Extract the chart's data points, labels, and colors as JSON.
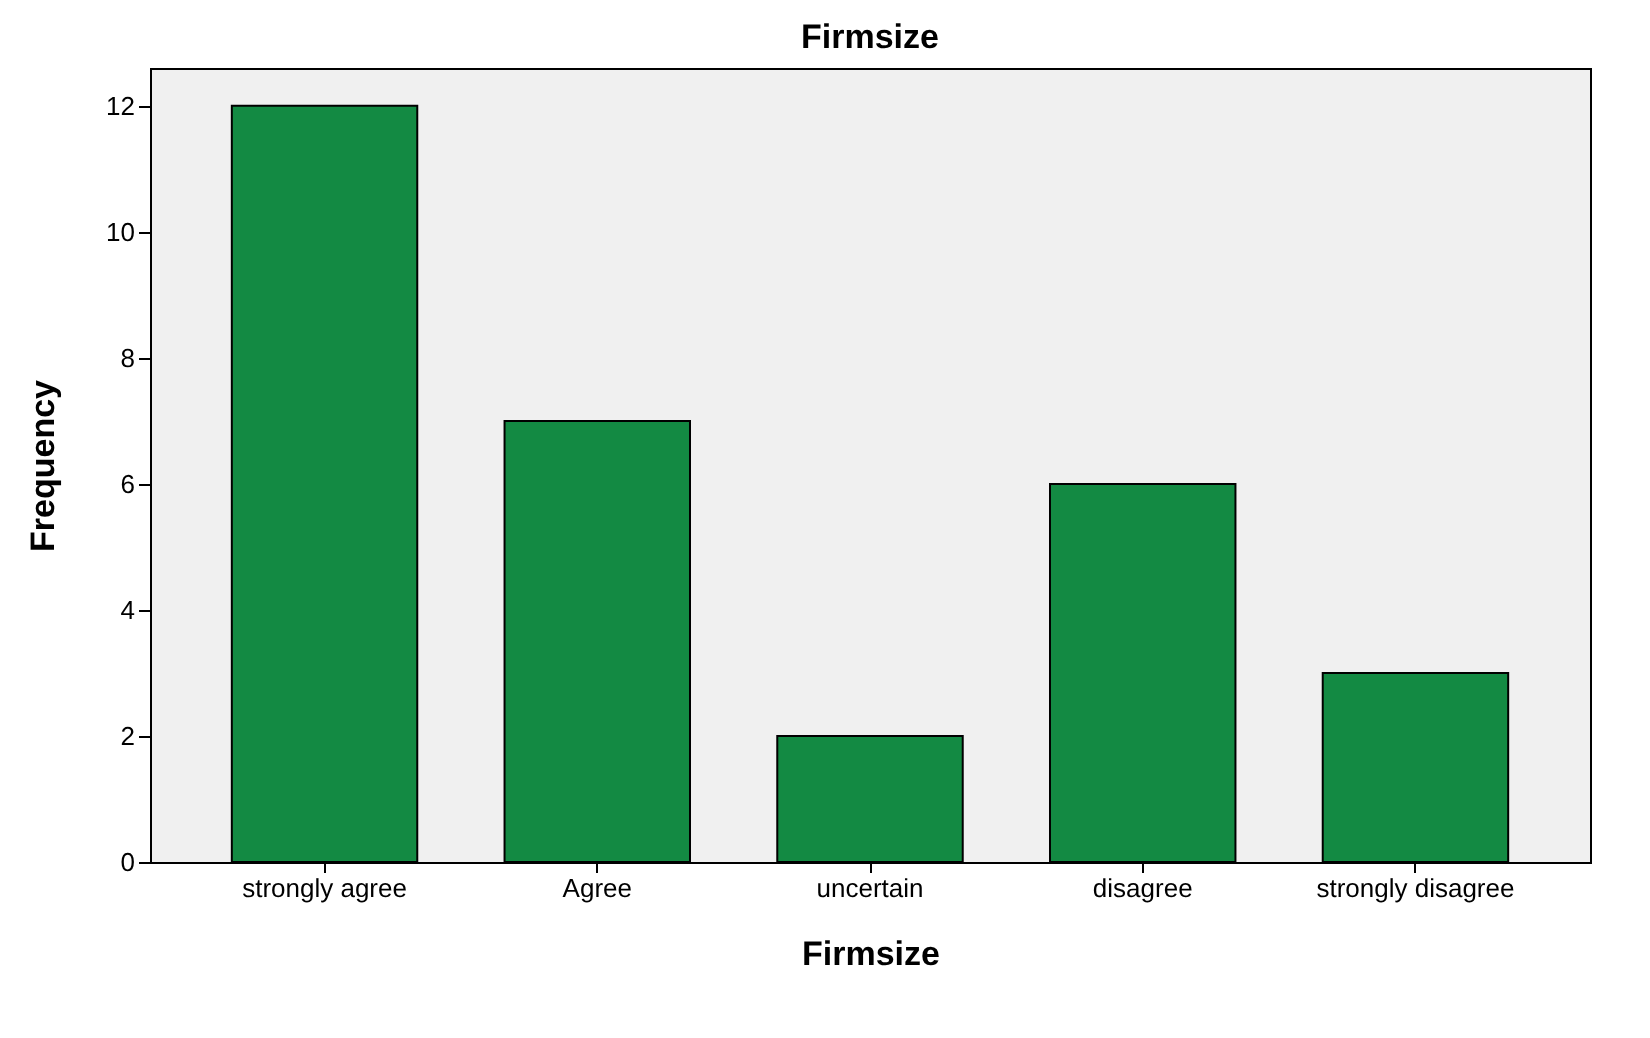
{
  "chart_data": {
    "type": "bar",
    "title": "Firmsize",
    "xlabel": "Firmsize",
    "ylabel": "Frequency",
    "categories": [
      "strongly agree",
      "Agree",
      "uncertain",
      "disagree",
      "strongly disagree"
    ],
    "values": [
      12,
      7,
      2,
      6,
      3
    ],
    "color": "#138a43",
    "ylim": [
      0,
      12.6
    ],
    "yticks": [
      0,
      2,
      4,
      6,
      8,
      10,
      12
    ],
    "grid": false
  }
}
